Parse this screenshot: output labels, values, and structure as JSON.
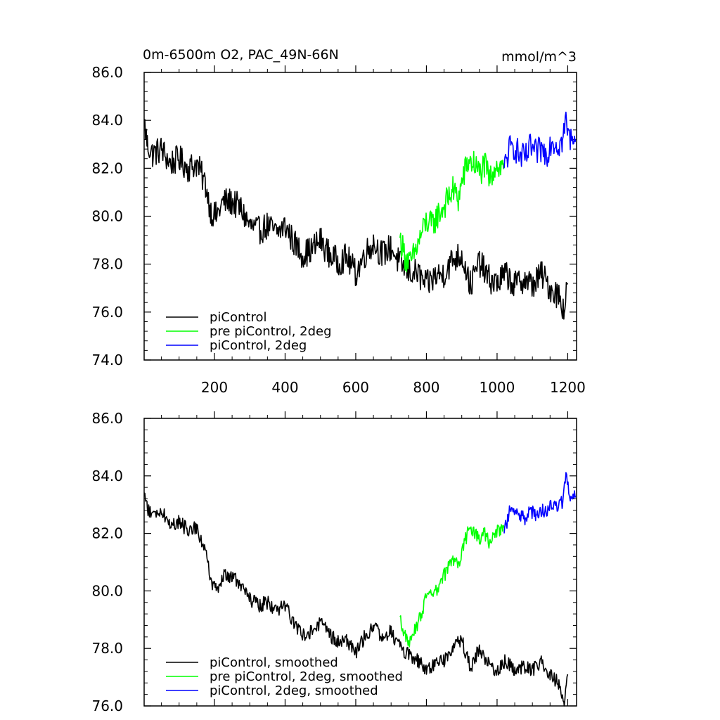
{
  "chart_data": [
    {
      "type": "line",
      "title": "0m-6500m O2, PAC_49N-66N",
      "units": "mmol/m^3",
      "xlim": [
        1,
        1225
      ],
      "ylim": [
        74,
        86
      ],
      "x_ticks": [
        200,
        400,
        600,
        800,
        1000,
        1200
      ],
      "x_tick_labels": [
        "200",
        "400",
        "600",
        "800",
        "1000",
        "1200"
      ],
      "y_ticks": [
        74,
        76,
        78,
        80,
        82,
        84,
        86
      ],
      "y_tick_labels": [
        "74.0",
        "76.0",
        "78.0",
        "80.0",
        "82.0",
        "84.0",
        "86.0"
      ],
      "legend": "bottom-left",
      "series": [
        {
          "name": "piControl",
          "color": "#000000",
          "x": [
            1,
            10,
            25,
            50,
            75,
            100,
            125,
            150,
            175,
            190,
            205,
            225,
            250,
            275,
            300,
            325,
            350,
            375,
            400,
            425,
            450,
            475,
            500,
            525,
            550,
            575,
            600,
            625,
            650,
            675,
            700,
            725,
            750,
            775,
            800,
            825,
            850,
            875,
            900,
            925,
            950,
            975,
            1000,
            1025,
            1050,
            1075,
            1100,
            1125,
            1150,
            1175,
            1190,
            1200
          ],
          "y": [
            84.0,
            83.0,
            82.6,
            82.8,
            82.2,
            82.4,
            82.0,
            82.2,
            81.3,
            80.2,
            80.0,
            80.6,
            80.6,
            80.3,
            79.6,
            79.4,
            79.6,
            79.3,
            79.6,
            78.9,
            78.4,
            78.6,
            79.0,
            78.4,
            78.1,
            78.3,
            77.6,
            78.4,
            78.9,
            78.4,
            78.7,
            78.0,
            77.7,
            77.6,
            77.1,
            77.5,
            77.6,
            78.2,
            78.4,
            77.1,
            78.1,
            77.4,
            77.2,
            77.6,
            77.1,
            77.4,
            77.1,
            77.6,
            77.0,
            76.7,
            76.1,
            77.2
          ]
        },
        {
          "name": "pre piControl, 2deg",
          "color": "#00ff00",
          "x": [
            725,
            740,
            755,
            770,
            785,
            800,
            815,
            830,
            845,
            860,
            875,
            890,
            905,
            920,
            935,
            950,
            965,
            980,
            995,
            1010,
            1020
          ],
          "y": [
            79.1,
            78.3,
            78.0,
            78.6,
            79.2,
            79.8,
            79.6,
            80.0,
            80.3,
            80.7,
            81.1,
            80.7,
            81.7,
            82.3,
            82.2,
            81.8,
            82.1,
            81.5,
            82.2,
            82.0,
            82.2
          ]
        },
        {
          "name": "piControl, 2deg",
          "color": "#0000ff",
          "x": [
            1020,
            1035,
            1050,
            1065,
            1080,
            1095,
            1110,
            1125,
            1140,
            1155,
            1170,
            1185,
            1195,
            1205,
            1215,
            1222
          ],
          "y": [
            82.0,
            82.8,
            82.9,
            82.5,
            82.4,
            82.9,
            82.6,
            82.8,
            82.6,
            83.2,
            83.0,
            83.1,
            84.0,
            83.2,
            83.5,
            83.2
          ]
        }
      ]
    },
    {
      "type": "line",
      "xlim": [
        1,
        1225
      ],
      "ylim": [
        76,
        86
      ],
      "x_ticks": [
        200,
        400,
        600,
        800,
        1000,
        1200
      ],
      "y_ticks": [
        76,
        78,
        80,
        82,
        84,
        86
      ],
      "y_tick_labels": [
        "76.0",
        "78.0",
        "80.0",
        "82.0",
        "84.0",
        "86.0"
      ],
      "legend": "bottom-left",
      "series": [
        {
          "name": "piControl, smoothed",
          "color": "#000000",
          "x": [
            1,
            10,
            25,
            50,
            75,
            100,
            125,
            150,
            175,
            190,
            205,
            225,
            250,
            275,
            300,
            325,
            350,
            375,
            400,
            425,
            450,
            475,
            500,
            525,
            550,
            575,
            600,
            625,
            650,
            675,
            700,
            725,
            750,
            775,
            800,
            825,
            850,
            875,
            900,
            925,
            950,
            975,
            1000,
            1025,
            1050,
            1075,
            1100,
            1125,
            1150,
            1175,
            1190,
            1200
          ],
          "y": [
            83.4,
            82.9,
            82.6,
            82.8,
            82.3,
            82.4,
            82.1,
            82.2,
            81.4,
            80.3,
            80.0,
            80.5,
            80.5,
            80.2,
            79.7,
            79.5,
            79.6,
            79.3,
            79.5,
            78.9,
            78.5,
            78.6,
            78.9,
            78.5,
            78.2,
            78.3,
            77.8,
            78.4,
            78.8,
            78.4,
            78.6,
            78.0,
            77.8,
            77.6,
            77.2,
            77.5,
            77.6,
            78.1,
            78.3,
            77.3,
            78.0,
            77.5,
            77.2,
            77.6,
            77.2,
            77.4,
            77.2,
            77.6,
            77.1,
            76.8,
            76.1,
            77.1
          ]
        },
        {
          "name": "pre piControl, 2deg, smoothed",
          "color": "#00ff00",
          "x": [
            725,
            740,
            755,
            770,
            785,
            800,
            815,
            830,
            845,
            860,
            875,
            890,
            905,
            920,
            935,
            950,
            965,
            980,
            995,
            1010,
            1020
          ],
          "y": [
            79.1,
            78.4,
            78.2,
            78.7,
            79.2,
            79.8,
            79.8,
            80.0,
            80.4,
            80.8,
            81.1,
            80.9,
            81.6,
            82.1,
            82.0,
            81.8,
            82.0,
            81.6,
            82.0,
            82.1,
            82.2
          ]
        },
        {
          "name": "piControl, 2deg, smoothed",
          "color": "#0000ff",
          "x": [
            1020,
            1035,
            1050,
            1065,
            1080,
            1095,
            1110,
            1125,
            1140,
            1155,
            1170,
            1185,
            1195,
            1205,
            1215,
            1222
          ],
          "y": [
            82.0,
            82.8,
            82.9,
            82.6,
            82.5,
            82.8,
            82.6,
            82.8,
            82.7,
            83.1,
            83.0,
            83.1,
            84.0,
            83.3,
            83.4,
            83.3
          ]
        }
      ]
    }
  ]
}
